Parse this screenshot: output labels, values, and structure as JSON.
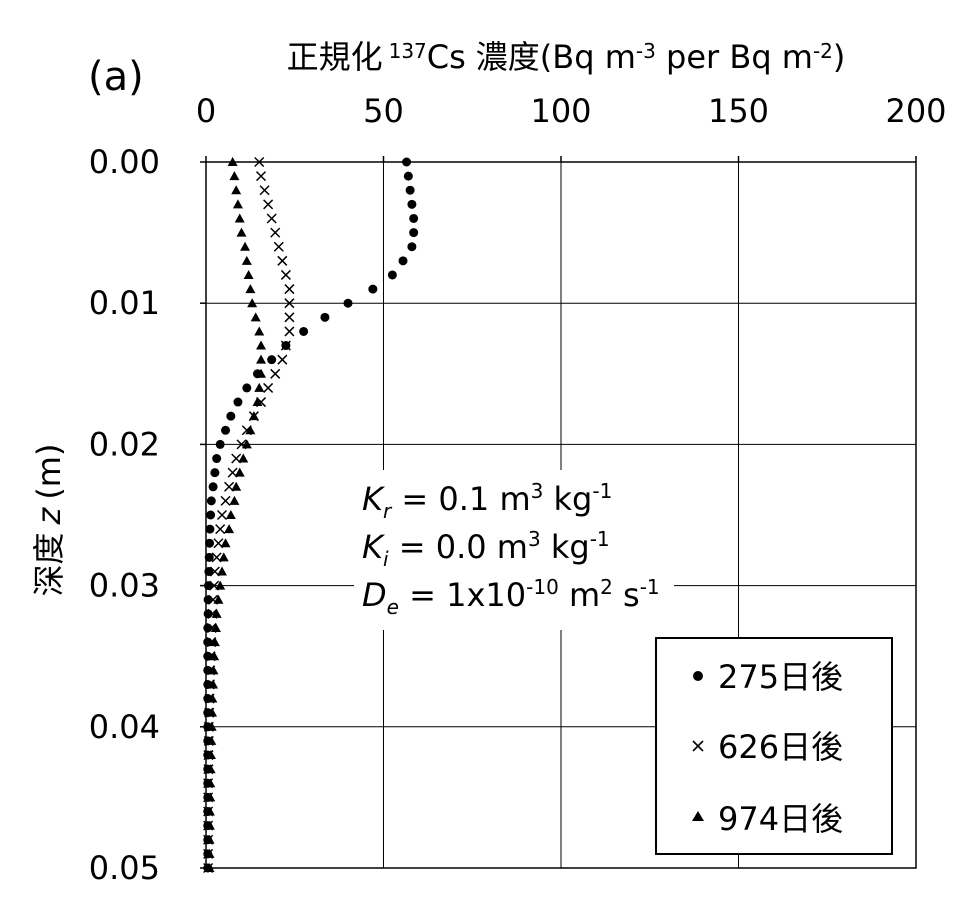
{
  "panel_label": "(a)",
  "chart_data": {
    "type": "scatter",
    "title": "",
    "xlabel": {
      "prefix": "正規化",
      "isotope_mass": "137",
      "isotope_symbol": "Cs",
      "quantity": "濃度(Bq m",
      "exp1": "-3",
      "middle": " per Bq m",
      "exp2": "-2",
      "suffix": ")"
    },
    "ylabel": {
      "text": "深度",
      "var": "z",
      "unit": "(m)"
    },
    "xlim": [
      0,
      200
    ],
    "ylim": [
      0,
      0.05
    ],
    "x_axis_position": "top",
    "y_inverted": true,
    "grid": true,
    "x_ticks": [
      0,
      50,
      100,
      150,
      200
    ],
    "x_tick_labels": [
      "0",
      "50",
      "100",
      "150",
      "200"
    ],
    "y_ticks": [
      0,
      0.01,
      0.02,
      0.03,
      0.04,
      0.05
    ],
    "y_tick_labels": [
      "0.00",
      "0.01",
      "0.02",
      "0.03",
      "0.04",
      "0.05"
    ],
    "depth": [
      0,
      0.001,
      0.002,
      0.003,
      0.004,
      0.005,
      0.006,
      0.007,
      0.008,
      0.009,
      0.01,
      0.011,
      0.012,
      0.013,
      0.014,
      0.015,
      0.016,
      0.017,
      0.018,
      0.019,
      0.02,
      0.021,
      0.022,
      0.023,
      0.024,
      0.025,
      0.026,
      0.027,
      0.028,
      0.029,
      0.03,
      0.031,
      0.032,
      0.033,
      0.034,
      0.035,
      0.036,
      0.037,
      0.038,
      0.039,
      0.04,
      0.041,
      0.042,
      0.043,
      0.044,
      0.045,
      0.046,
      0.047,
      0.048,
      0.049,
      0.05
    ],
    "series": [
      {
        "name": "275日後",
        "marker": "circle",
        "values": [
          56.5,
          57.0,
          57.5,
          58.0,
          58.5,
          58.5,
          58.0,
          55.5,
          52.5,
          47.0,
          40.0,
          33.5,
          27.5,
          22.5,
          18.5,
          14.5,
          11.5,
          9.0,
          7.0,
          5.5,
          4.0,
          3.0,
          2.5,
          2.0,
          1.5,
          1.3,
          1.1,
          1.0,
          0.9,
          0.8,
          0.7,
          0.6,
          0.6,
          0.5,
          0.5,
          0.5,
          0.5,
          0.5,
          0.5,
          0.5,
          0.5,
          0.5,
          0.5,
          0.5,
          0.5,
          0.5,
          0.5,
          0.5,
          0.5,
          0.5,
          0.5
        ]
      },
      {
        "name": "626日後",
        "marker": "x",
        "values": [
          15.0,
          15.5,
          16.5,
          17.5,
          18.5,
          19.5,
          20.5,
          21.5,
          22.5,
          23.5,
          23.5,
          23.5,
          23.5,
          22.5,
          21.5,
          19.5,
          17.5,
          15.5,
          13.5,
          11.5,
          10.0,
          8.5,
          7.5,
          6.5,
          5.5,
          4.5,
          4.0,
          3.5,
          3.0,
          2.5,
          2.3,
          2.0,
          1.8,
          1.6,
          1.5,
          1.3,
          1.2,
          1.1,
          1.0,
          0.9,
          0.8,
          0.8,
          0.7,
          0.7,
          0.6,
          0.6,
          0.6,
          0.6,
          0.6,
          0.6,
          0.6
        ]
      },
      {
        "name": "974日後",
        "marker": "triangle",
        "values": [
          7.5,
          8.0,
          8.5,
          9.0,
          9.5,
          10.0,
          11.0,
          11.5,
          12.0,
          12.5,
          13.0,
          14.0,
          15.0,
          15.5,
          15.5,
          15.5,
          15.0,
          14.5,
          13.5,
          12.5,
          11.5,
          10.5,
          9.5,
          8.5,
          8.0,
          7.0,
          6.5,
          5.5,
          5.0,
          4.5,
          4.0,
          3.5,
          3.0,
          2.8,
          2.5,
          2.3,
          2.1,
          2.0,
          1.8,
          1.7,
          1.6,
          1.5,
          1.4,
          1.3,
          1.2,
          1.2,
          1.1,
          1.1,
          1.0,
          1.0,
          1.0
        ]
      }
    ],
    "legend_position": "bottom-right",
    "annotations": [
      {
        "var": "K",
        "sub": "r",
        "text": " = 0.1 m",
        "sup1": "3",
        "text2": " kg",
        "sup2": "-1"
      },
      {
        "var": "K",
        "sub": "i",
        "text": " = 0.0 m",
        "sup1": "3",
        "text2": " kg",
        "sup2": "-1"
      },
      {
        "var": "D",
        "sub": "e",
        "text": " = 1x10",
        "sup1": "-10",
        "text2": " m",
        "sup2": "2",
        "text3": " s",
        "sup3": "-1"
      }
    ]
  }
}
